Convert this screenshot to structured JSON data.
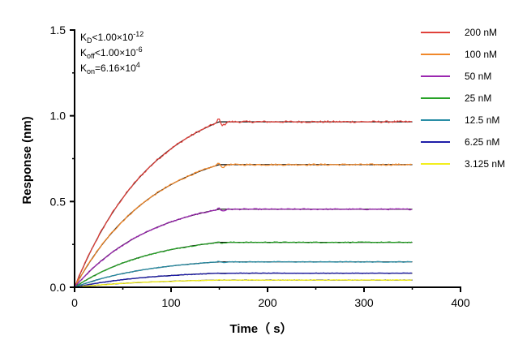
{
  "chart_data": {
    "type": "line",
    "title": "",
    "xlabel": "Time（ s）",
    "ylabel": "Response (nm)",
    "xlim": [
      0,
      400
    ],
    "ylim": [
      0,
      1.5
    ],
    "xticks": [
      "0",
      "100",
      "200",
      "300",
      "400"
    ],
    "yticks": [
      "0.0",
      "0.5",
      "1.0",
      "1.5"
    ],
    "grid": false,
    "legend_position": "top-right",
    "association_end": 150,
    "x_end": 350,
    "kinetics": [
      {
        "base": "K",
        "sub": "D",
        "rel": "<",
        "mant": "1.00×10",
        "exp": "-12"
      },
      {
        "base": "K",
        "sub": "off",
        "rel": "<",
        "mant": "1.00×10",
        "exp": "-6"
      },
      {
        "base": "K",
        "sub": "on",
        "rel": "=",
        "mant": "6.16×10",
        "exp": "4"
      }
    ],
    "series": [
      {
        "name": "200 nM",
        "color": "#e0413b",
        "plateau": 0.965
      },
      {
        "name": "100 nM",
        "color": "#f0882a",
        "plateau": 0.715
      },
      {
        "name": "50 nM",
        "color": "#9b27b0",
        "plateau": 0.455
      },
      {
        "name": "25 nM",
        "color": "#27a227",
        "plateau": 0.262
      },
      {
        "name": "12.5 nM",
        "color": "#2a8ea6",
        "plateau": 0.148
      },
      {
        "name": "6.25 nM",
        "color": "#1f1ea8",
        "plateau": 0.082
      },
      {
        "name": "3.125 nM",
        "color": "#f2ee1c",
        "plateau": 0.042
      }
    ]
  }
}
